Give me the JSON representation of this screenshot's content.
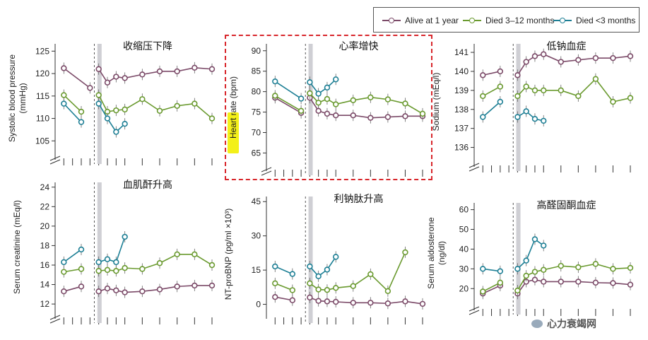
{
  "legend": {
    "items": [
      {
        "label": "Alive at 1 year",
        "color": "#7b4a68"
      },
      {
        "label": "Died 3–12 months",
        "color": "#6a9a2f"
      },
      {
        "label": "Died <3 months",
        "color": "#1d7f95"
      }
    ]
  },
  "watermark": {
    "text": "心力衰竭网"
  },
  "chart_data": [
    {
      "type": "line",
      "title": "收缩压下降",
      "ylabel": [
        "Systolic blood pressure",
        "(mmHg)"
      ],
      "ylim": [
        103,
        126
      ],
      "yticks": [
        105,
        110,
        115,
        120,
        125
      ],
      "axis_break": true,
      "series": [
        {
          "name": "Alive at 1 year",
          "segments": [
            [
              [
                1,
                121.2
              ],
              [
                4,
                116.8
              ]
            ],
            [
              [
                5,
                121
              ],
              [
                6,
                118
              ],
              [
                7,
                119.3
              ],
              [
                8,
                119
              ],
              [
                10,
                119.8
              ],
              [
                12,
                120.5
              ],
              [
                14,
                120.5
              ],
              [
                16,
                121.3
              ],
              [
                18,
                121
              ]
            ]
          ]
        },
        {
          "name": "Died 3–12 months",
          "segments": [
            [
              [
                1,
                115.2
              ],
              [
                3,
                111.5
              ]
            ],
            [
              [
                5,
                115.2
              ],
              [
                6,
                111.5
              ],
              [
                7,
                111.8
              ],
              [
                8,
                112
              ],
              [
                10,
                114.3
              ],
              [
                12,
                111.7
              ],
              [
                14,
                112.8
              ],
              [
                16,
                113.3
              ],
              [
                18,
                110
              ]
            ]
          ]
        },
        {
          "name": "Died <3 months",
          "segments": [
            [
              [
                1,
                113.3
              ],
              [
                3,
                109.2
              ]
            ],
            [
              [
                5,
                113.3
              ],
              [
                6,
                110
              ],
              [
                7,
                107
              ],
              [
                8,
                108.8
              ]
            ]
          ]
        }
      ]
    },
    {
      "type": "line",
      "title": "心率增快",
      "ylabel": [
        "Heart rate",
        " (bpm)"
      ],
      "highlight": "Heart rate",
      "ylim": [
        63,
        91
      ],
      "yticks": [
        65,
        70,
        75,
        80,
        85,
        90
      ],
      "axis_break": true,
      "series": [
        {
          "name": "Alive at 1 year",
          "segments": [
            [
              [
                1,
                78.5
              ],
              [
                4,
                74.8
              ]
            ],
            [
              [
                5,
                78.5
              ],
              [
                6,
                75.3
              ],
              [
                7,
                74.6
              ],
              [
                8,
                74.2
              ],
              [
                10,
                74.2
              ],
              [
                12,
                73.6
              ],
              [
                14,
                73.8
              ],
              [
                16,
                74
              ],
              [
                18,
                74
              ]
            ]
          ]
        },
        {
          "name": "Died 3–12 months",
          "segments": [
            [
              [
                1,
                79
              ],
              [
                4,
                75.3
              ]
            ],
            [
              [
                5,
                79.6
              ],
              [
                6,
                77.3
              ],
              [
                7,
                78.2
              ],
              [
                8,
                76.9
              ],
              [
                10,
                77.9
              ],
              [
                12,
                78.6
              ],
              [
                14,
                78.1
              ],
              [
                16,
                77.1
              ],
              [
                18,
                74.6
              ]
            ]
          ]
        },
        {
          "name": "Died <3 months",
          "segments": [
            [
              [
                1,
                82.5
              ],
              [
                4,
                78.3
              ]
            ],
            [
              [
                5,
                82.3
              ],
              [
                6,
                79.5
              ],
              [
                7,
                81
              ],
              [
                8,
                83
              ]
            ]
          ]
        }
      ]
    },
    {
      "type": "line",
      "title": "低钠血症",
      "ylabel": [
        "Sodium (mEq/l)"
      ],
      "ylim": [
        135.5,
        141.3
      ],
      "yticks": [
        136,
        137,
        138,
        139,
        140,
        141
      ],
      "axis_break": true,
      "series": [
        {
          "name": "Alive at 1 year",
          "segments": [
            [
              [
                1,
                139.8
              ],
              [
                3,
                140
              ]
            ],
            [
              [
                5,
                139.8
              ],
              [
                6,
                140.5
              ],
              [
                7,
                140.8
              ],
              [
                8,
                140.9
              ],
              [
                10,
                140.5
              ],
              [
                12,
                140.6
              ],
              [
                14,
                140.7
              ],
              [
                16,
                140.7
              ],
              [
                18,
                140.8
              ]
            ]
          ]
        },
        {
          "name": "Died 3–12 months",
          "segments": [
            [
              [
                1,
                138.7
              ],
              [
                3,
                139.2
              ]
            ],
            [
              [
                5,
                138.7
              ],
              [
                6,
                139.2
              ],
              [
                7,
                139
              ],
              [
                8,
                139
              ],
              [
                10,
                139
              ],
              [
                12,
                138.7
              ],
              [
                14,
                139.6
              ],
              [
                16,
                138.4
              ],
              [
                18,
                138.6
              ]
            ]
          ]
        },
        {
          "name": "Died <3 months",
          "segments": [
            [
              [
                1,
                137.6
              ],
              [
                3,
                138.4
              ]
            ],
            [
              [
                5,
                137.6
              ],
              [
                6,
                137.9
              ],
              [
                7,
                137.5
              ],
              [
                8,
                137.4
              ]
            ]
          ]
        }
      ]
    },
    {
      "type": "line",
      "title": "血肌酐升高",
      "ylabel": [
        "Serum creatinine (mEq/l)"
      ],
      "ylim": [
        11.5,
        24.2
      ],
      "yticks": [
        12,
        14,
        16,
        18,
        20,
        22,
        24
      ],
      "axis_break": true,
      "series": [
        {
          "name": "Alive at 1 year",
          "segments": [
            [
              [
                1,
                13.3
              ],
              [
                3,
                13.8
              ]
            ],
            [
              [
                5,
                13.3
              ],
              [
                6,
                13.6
              ],
              [
                7,
                13.4
              ],
              [
                8,
                13.2
              ],
              [
                10,
                13.3
              ],
              [
                12,
                13.5
              ],
              [
                14,
                13.8
              ],
              [
                16,
                13.9
              ],
              [
                18,
                13.9
              ]
            ]
          ]
        },
        {
          "name": "Died 3–12 months",
          "segments": [
            [
              [
                1,
                15.3
              ],
              [
                3,
                15.6
              ]
            ],
            [
              [
                5,
                15.4
              ],
              [
                6,
                15.5
              ],
              [
                7,
                15.4
              ],
              [
                8,
                15.7
              ],
              [
                10,
                15.6
              ],
              [
                12,
                16.2
              ],
              [
                14,
                17.1
              ],
              [
                16,
                17.1
              ],
              [
                18,
                16
              ]
            ]
          ]
        },
        {
          "name": "Died <3 months",
          "segments": [
            [
              [
                1,
                16.3
              ],
              [
                3,
                17.6
              ]
            ],
            [
              [
                5,
                16.3
              ],
              [
                6,
                16.6
              ],
              [
                7,
                16.3
              ],
              [
                8,
                18.9
              ]
            ]
          ]
        }
      ]
    },
    {
      "type": "line",
      "title": "利钠肽升高",
      "ylabel": [
        "NT-proBNP (pg/ml ×10³)"
      ],
      "ylim": [
        -2,
        46
      ],
      "yticks": [
        0,
        15,
        30,
        45
      ],
      "axis_break": false,
      "series": [
        {
          "name": "Alive at 1 year",
          "segments": [
            [
              [
                1,
                3.2
              ],
              [
                3,
                1.8
              ]
            ],
            [
              [
                5,
                3
              ],
              [
                6,
                1.5
              ],
              [
                7,
                1.3
              ],
              [
                8,
                1.1
              ],
              [
                10,
                0.7
              ],
              [
                12,
                0.7
              ],
              [
                14,
                0.4
              ],
              [
                16,
                1.3
              ],
              [
                18,
                0.2
              ]
            ]
          ]
        },
        {
          "name": "Died 3–12 months",
          "segments": [
            [
              [
                1,
                9.2
              ],
              [
                3,
                6.2
              ]
            ],
            [
              [
                5,
                9.2
              ],
              [
                6,
                6.5
              ],
              [
                7,
                6.3
              ],
              [
                8,
                7.2
              ],
              [
                10,
                8
              ],
              [
                12,
                13.2
              ],
              [
                14,
                5.8
              ],
              [
                16,
                22.8
              ]
            ]
          ]
        },
        {
          "name": "Died <3 months",
          "segments": [
            [
              [
                1,
                16.6
              ],
              [
                3,
                13.3
              ]
            ],
            [
              [
                5,
                16.6
              ],
              [
                6,
                12.3
              ],
              [
                7,
                15.2
              ],
              [
                8,
                20.8
              ]
            ]
          ]
        }
      ]
    },
    {
      "type": "line",
      "title": "高醛固酮血症",
      "ylabel": [
        "Serum aldosterone",
        "(ng/dl)"
      ],
      "ylim": [
        14,
        62
      ],
      "yticks": [
        20,
        30,
        40,
        50,
        60
      ],
      "axis_break": true,
      "series": [
        {
          "name": "Alive at 1 year",
          "segments": [
            [
              [
                1,
                17.5
              ],
              [
                3,
                21.5
              ]
            ],
            [
              [
                5,
                17.5
              ],
              [
                6,
                23.5
              ],
              [
                7,
                24.5
              ],
              [
                8,
                23.5
              ],
              [
                10,
                23.5
              ],
              [
                12,
                23.5
              ],
              [
                14,
                23
              ],
              [
                16,
                22.8
              ],
              [
                18,
                22
              ]
            ]
          ]
        },
        {
          "name": "Died 3–12 months",
          "segments": [
            [
              [
                1,
                18.5
              ],
              [
                3,
                23
              ]
            ],
            [
              [
                5,
                19
              ],
              [
                6,
                26.5
              ],
              [
                7,
                28.5
              ],
              [
                8,
                29.5
              ],
              [
                10,
                31.5
              ],
              [
                12,
                30.8
              ],
              [
                14,
                32.5
              ],
              [
                16,
                30
              ],
              [
                18,
                30.5
              ]
            ]
          ]
        },
        {
          "name": "Died <3 months",
          "segments": [
            [
              [
                1,
                30
              ],
              [
                3,
                28.8
              ]
            ],
            [
              [
                5,
                30
              ],
              [
                6,
                34.2
              ],
              [
                7,
                45
              ],
              [
                8,
                41.8
              ]
            ]
          ]
        }
      ]
    }
  ]
}
